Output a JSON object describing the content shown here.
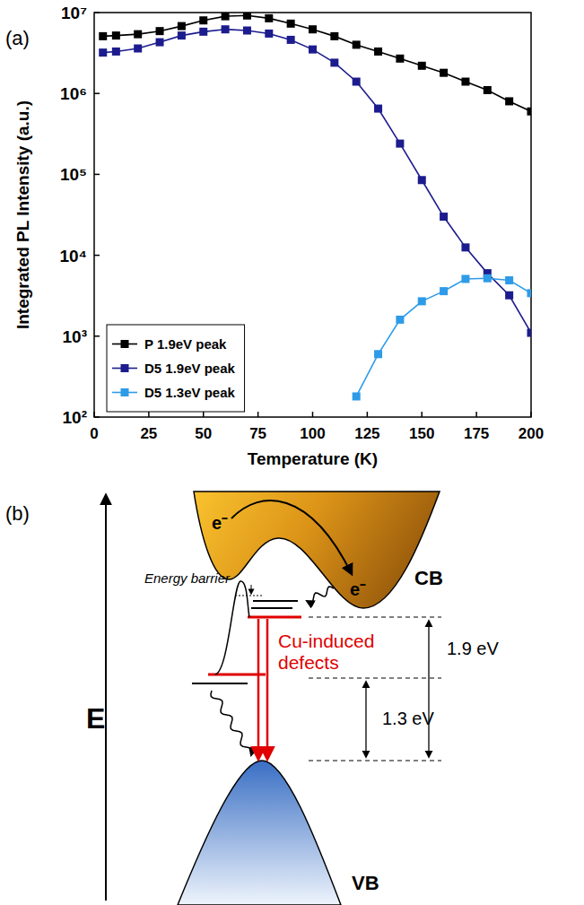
{
  "panel_labels": [
    "(a)",
    "(b)"
  ],
  "chart_data": {
    "type": "line",
    "x_label": "Temperature (K)",
    "y_label": "Integrated PL Intensity (a.u.)",
    "x": [
      4,
      10,
      20,
      30,
      40,
      50,
      60,
      70,
      80,
      90,
      100,
      110,
      120,
      130,
      140,
      150,
      160,
      170,
      180,
      190,
      200
    ],
    "series": [
      {
        "name": "P 1.9eV peak",
        "color": "#000000",
        "marker": "square",
        "line_style": "solid",
        "values": [
          5100000,
          5200000,
          5400000,
          5900000,
          6800000,
          8000000,
          9000000,
          9200000,
          8500000,
          7300000,
          6200000,
          5100000,
          4000000,
          3300000,
          2700000,
          2200000,
          1800000,
          1400000,
          1100000,
          800000,
          600000
        ]
      },
      {
        "name": "D5 1.9eV peak",
        "color": "#1c1c8e",
        "marker": "square",
        "line_style": "solid",
        "values": [
          3200000,
          3300000,
          3600000,
          4300000,
          5200000,
          5800000,
          6200000,
          6000000,
          5500000,
          4600000,
          3500000,
          2400000,
          1400000,
          650000,
          240000,
          85000,
          30000,
          12500,
          6000,
          3200,
          1100
        ]
      },
      {
        "name": "D5 1.3eV peak",
        "color": "#2e9be8",
        "marker": "square",
        "line_style": "solid",
        "values": [
          null,
          null,
          null,
          null,
          null,
          null,
          null,
          null,
          null,
          null,
          null,
          null,
          180,
          600,
          1600,
          2700,
          3600,
          5100,
          5200,
          4900,
          3400
        ]
      }
    ],
    "xlim": [
      0,
      200
    ],
    "xticks": [
      0,
      25,
      50,
      75,
      100,
      125,
      150,
      175,
      200
    ],
    "ylim": [
      100,
      10000000
    ],
    "yticks": [
      {
        "value": 100,
        "label": "10²"
      },
      {
        "value": 1000,
        "label": "10³"
      },
      {
        "value": 10000,
        "label": "10⁴"
      },
      {
        "value": 100000,
        "label": "10⁵"
      },
      {
        "value": 1000000,
        "label": "10⁶"
      },
      {
        "value": 10000000,
        "label": "10⁷"
      }
    ],
    "log": "y",
    "grid": false,
    "legend": "bottom-left"
  },
  "diagram": {
    "axis_label": "E",
    "conduction_band": "CB",
    "valence_band": "VB",
    "electrons": [
      "e⁻",
      "e⁻"
    ],
    "energy_barrier": "Energy barrier",
    "defects_label": "Cu-induced defects",
    "transitions": [
      "1.9 eV",
      "1.3 eV"
    ]
  }
}
